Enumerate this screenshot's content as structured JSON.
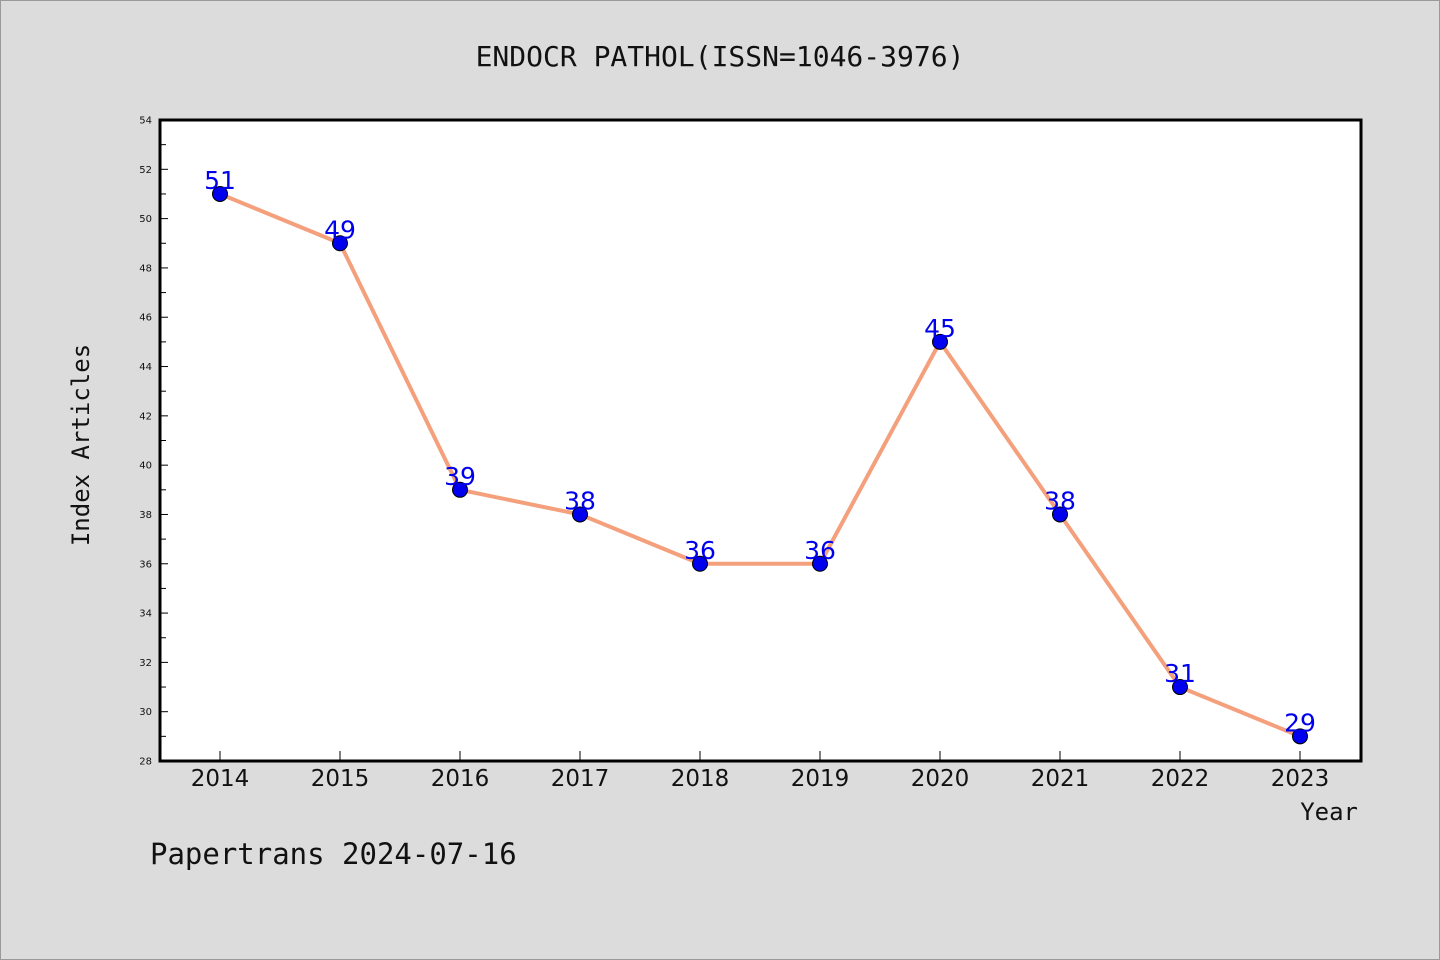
{
  "chart_data": {
    "type": "line",
    "title": "ENDOCR PATHOL(ISSN=1046-3976)",
    "xlabel": "Year",
    "ylabel": "Index Articles",
    "categories": [
      "2014",
      "2015",
      "2016",
      "2017",
      "2018",
      "2019",
      "2020",
      "2021",
      "2022",
      "2023"
    ],
    "series": [
      {
        "values": [
          51,
          49,
          39,
          38,
          36,
          36,
          45,
          38,
          31,
          29
        ],
        "line_color": "#f4a07c",
        "marker_color": "#0000ee"
      }
    ],
    "ylim": [
      28,
      54
    ],
    "yticks": [
      "28",
      "30",
      "32",
      "34",
      "36",
      "38",
      "40",
      "42",
      "44",
      "46",
      "48",
      "50",
      "52",
      "54"
    ],
    "data_labels": [
      "51",
      "49",
      "39",
      "38",
      "36",
      "36",
      "45",
      "38",
      "31",
      "29"
    ],
    "grid": false,
    "legend": "none"
  },
  "footer": {
    "text": "Papertrans 2024-07-16"
  }
}
